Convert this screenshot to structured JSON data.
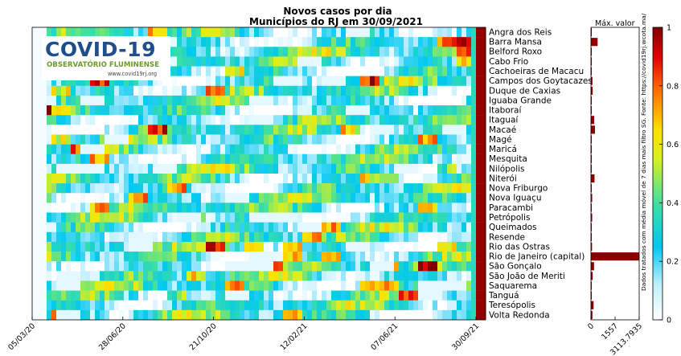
{
  "chart_data": {
    "type": "heatmap",
    "title": "Novos casos por dia",
    "subtitle": "Municípios do RJ em 30/09/2021",
    "municipalities": [
      "Angra dos Reis",
      "Barra Mansa",
      "Belford Roxo",
      "Cabo Frio",
      "Cachoeiras de Macacu",
      "Campos dos Goytacazes",
      "Duque de Caxias",
      "Iguaba Grande",
      "Itaboraí",
      "Itaguaí",
      "Macaé",
      "Magé",
      "Maricá",
      "Mesquita",
      "Nilópolis",
      "Niterói",
      "Nova Friburgo",
      "Nova Iguaçu",
      "Paracambi",
      "Petrópolis",
      "Queimados",
      "Resende",
      "Rio das Ostras",
      "Rio de Janeiro (capital)",
      "São Gonçalo",
      "São João de Meriti",
      "Saquarema",
      "Tanguá",
      "Teresópolis",
      "Volta Redonda"
    ],
    "x_ticks": [
      "05/03/20",
      "28/06/20",
      "21/10/20",
      "12/02/21",
      "07/06/21",
      "30/09/21"
    ],
    "colorbar": {
      "min": 0,
      "max": 1,
      "ticks": [
        "0",
        "0.2",
        "0.4",
        "0.6",
        "0.8",
        "1"
      ]
    },
    "max_value_label": "Máx. valor",
    "max_value_ticks": [
      "0",
      "1557",
      "3113.7935"
    ],
    "max_values": [
      30,
      430,
      15,
      25,
      12,
      95,
      110,
      30,
      22,
      210,
      260,
      35,
      30,
      40,
      30,
      230,
      20,
      80,
      5,
      80,
      15,
      30,
      70,
      3114,
      200,
      110,
      25,
      25,
      170,
      95
    ],
    "note": "Dados tratados com média móvel de 7 dias mais filtro SG. Fonte: https://covid19rj.wcota.ma/"
  },
  "logo": {
    "title": "COVID-19",
    "subtitle": "OBSERVATÓRIO FLUMINENSE",
    "url": "www.covid19rj.org"
  },
  "colors": {
    "low": "#ffffff",
    "mid_low": "#00c8f0",
    "mid": "#ffff00",
    "high": "#ff2000",
    "max": "#800000",
    "bar": "#8b0000"
  }
}
